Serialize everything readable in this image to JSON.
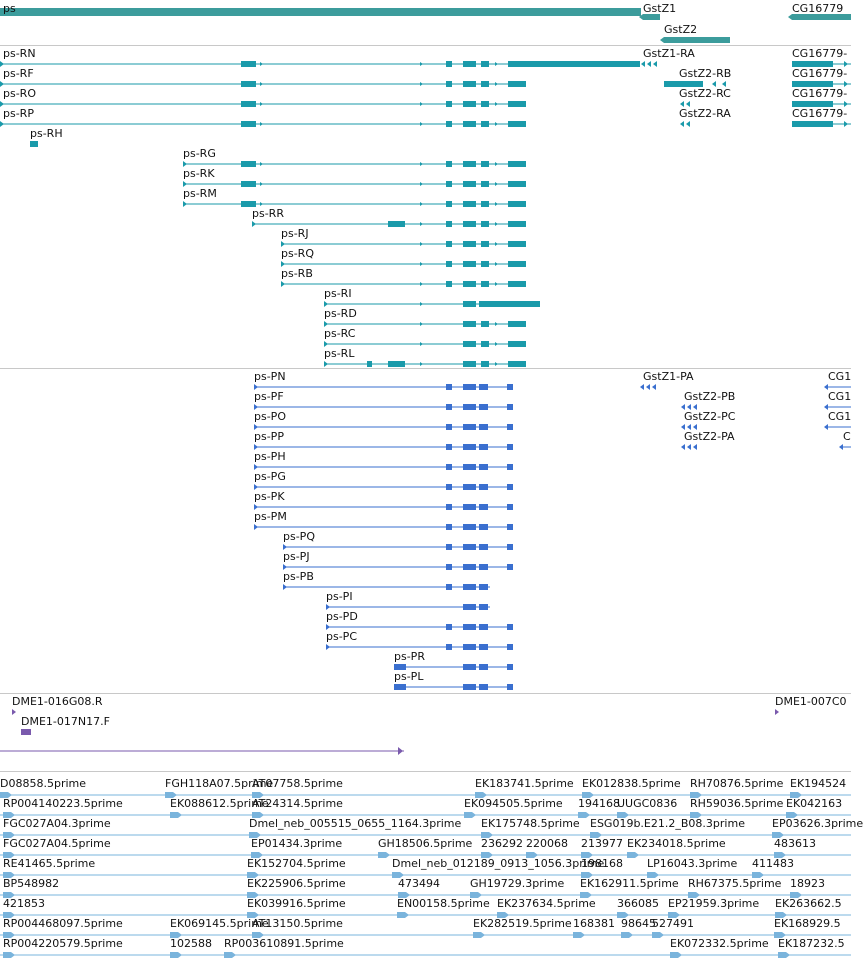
{
  "colors": {
    "gene": "#3c9c9c",
    "transcript": "#1a9aaa",
    "protein": "#3a6fcf",
    "clone": "#7a5aad",
    "est": "#7ab4dc",
    "separator": "#c8c8c8"
  },
  "genes": [
    {
      "label": "ps",
      "feature": "gene-feature-ps"
    },
    {
      "label": "GstZ1",
      "feature": "gene-feature-gstz1"
    },
    {
      "label": "GstZ2",
      "feature": "gene-feature-gstz2"
    },
    {
      "label": "CG16779",
      "feature": "gene-feature-cg16779"
    }
  ],
  "transcripts": [
    {
      "label": "ps-RN"
    },
    {
      "label": "ps-RF"
    },
    {
      "label": "ps-RO"
    },
    {
      "label": "ps-RP"
    },
    {
      "label": "ps-RH"
    },
    {
      "label": "ps-RG"
    },
    {
      "label": "ps-RK"
    },
    {
      "label": "ps-RM"
    },
    {
      "label": "ps-RR"
    },
    {
      "label": "ps-RJ"
    },
    {
      "label": "ps-RQ"
    },
    {
      "label": "ps-RB"
    },
    {
      "label": "ps-RI"
    },
    {
      "label": "ps-RD"
    },
    {
      "label": "ps-RC"
    },
    {
      "label": "ps-RL"
    },
    {
      "label": "GstZ1-RA"
    },
    {
      "label": "GstZ2-RB"
    },
    {
      "label": "GstZ2-RC"
    },
    {
      "label": "GstZ2-RA"
    },
    {
      "label": "CG16779-"
    },
    {
      "label": "CG16779-"
    },
    {
      "label": "CG16779-"
    },
    {
      "label": "CG16779-"
    }
  ],
  "proteins": [
    {
      "label": "ps-PN"
    },
    {
      "label": "ps-PF"
    },
    {
      "label": "ps-PO"
    },
    {
      "label": "ps-PP"
    },
    {
      "label": "ps-PH"
    },
    {
      "label": "ps-PG"
    },
    {
      "label": "ps-PK"
    },
    {
      "label": "ps-PM"
    },
    {
      "label": "ps-PQ"
    },
    {
      "label": "ps-PJ"
    },
    {
      "label": "ps-PB"
    },
    {
      "label": "ps-PI"
    },
    {
      "label": "ps-PD"
    },
    {
      "label": "ps-PC"
    },
    {
      "label": "ps-PR"
    },
    {
      "label": "ps-PL"
    },
    {
      "label": "GstZ1-PA"
    },
    {
      "label": "GstZ2-PB"
    },
    {
      "label": "GstZ2-PC"
    },
    {
      "label": "GstZ2-PA"
    },
    {
      "label": "CG1"
    },
    {
      "label": "CG1"
    },
    {
      "label": "CG1"
    },
    {
      "label": "C"
    }
  ],
  "clones": [
    {
      "label": "DME1-016G08.R"
    },
    {
      "label": "DME1-017N17.F"
    },
    {
      "label": "DME1-007C0"
    }
  ],
  "ests": [
    {
      "label": "D08858.5prime"
    },
    {
      "label": "FGH118A07.5prime"
    },
    {
      "label": "AT07758.5prime"
    },
    {
      "label": "EK183741.5prime"
    },
    {
      "label": "EK012838.5prime"
    },
    {
      "label": "RH70876.5prime"
    },
    {
      "label": "EK194524"
    },
    {
      "label": "RP004140223.5prime"
    },
    {
      "label": "EK088612.5prime"
    },
    {
      "label": "AT24314.5prime"
    },
    {
      "label": "EK094505.5prime"
    },
    {
      "label": "194168"
    },
    {
      "label": "UUGC0836"
    },
    {
      "label": "RH59036.5prime"
    },
    {
      "label": "EK042163"
    },
    {
      "label": "FGC027A04.3prime"
    },
    {
      "label": "Dmel_neb_005515_0655_1164.3prime"
    },
    {
      "label": "EK175748.5prime"
    },
    {
      "label": "ESG019b.E21.2_B08.3prime"
    },
    {
      "label": "EP03626.3prime"
    },
    {
      "label": "FGC027A04.5prime"
    },
    {
      "label": "EP01434.3prime"
    },
    {
      "label": "GH18506.5prime"
    },
    {
      "label": "236292"
    },
    {
      "label": "220068"
    },
    {
      "label": "213977"
    },
    {
      "label": "EK234018.5prime"
    },
    {
      "label": "483613"
    },
    {
      "label": "RE41465.5prime"
    },
    {
      "label": "EK152704.5prime"
    },
    {
      "label": "Dmel_neb_012189_0913_1056.3prime"
    },
    {
      "label": "198168"
    },
    {
      "label": "LP16043.3prime"
    },
    {
      "label": "411483"
    },
    {
      "label": "BP548982"
    },
    {
      "label": "EK225906.5prime"
    },
    {
      "label": "473494"
    },
    {
      "label": "GH19729.3prime"
    },
    {
      "label": "EK162911.5prime"
    },
    {
      "label": "RH67375.5prime"
    },
    {
      "label": "18923"
    },
    {
      "label": "421853"
    },
    {
      "label": "EK039916.5prime"
    },
    {
      "label": "EN00158.5prime"
    },
    {
      "label": "EK237634.5prime"
    },
    {
      "label": "366085"
    },
    {
      "label": "EP21959.3prime"
    },
    {
      "label": "EK263662.5"
    },
    {
      "label": "RP004468097.5prime"
    },
    {
      "label": "EK069145.5prime"
    },
    {
      "label": "AT13150.5prime"
    },
    {
      "label": "EK282519.5prime"
    },
    {
      "label": "168381"
    },
    {
      "label": "98645"
    },
    {
      "label": "527491"
    },
    {
      "label": "EK168929.5"
    },
    {
      "label": "RP004220579.5prime"
    },
    {
      "label": "102588"
    },
    {
      "label": "RP003610891.5prime"
    },
    {
      "label": "EK072332.5prime"
    },
    {
      "label": "EK187232.5"
    }
  ]
}
